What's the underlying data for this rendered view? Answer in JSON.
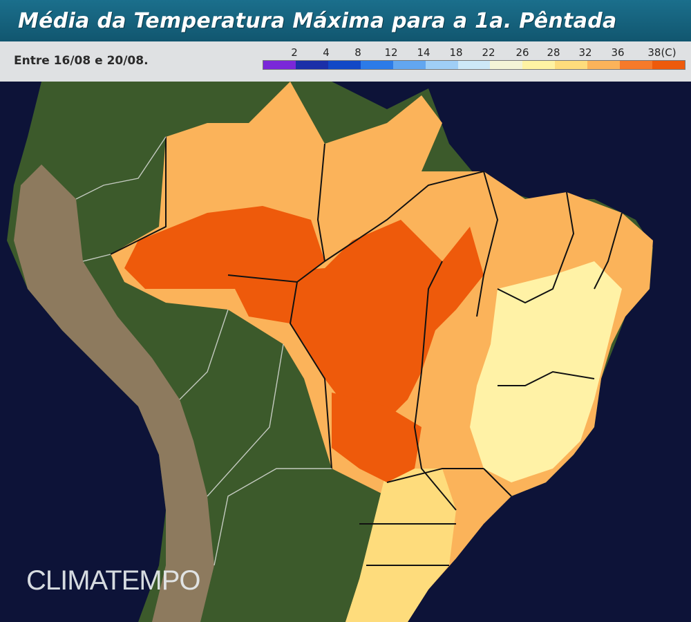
{
  "header": {
    "title": "Média da Temperatura Máxima para a 1a. Pêntada",
    "period": "Entre 16/08 e 20/08."
  },
  "legend": {
    "labels": [
      "2",
      "4",
      "8",
      "12",
      "14",
      "18",
      "22",
      "26",
      "28",
      "32",
      "36",
      "38(C)"
    ],
    "colors": [
      "#7a27d8",
      "#1b2fa8",
      "#1248c6",
      "#2c7be8",
      "#62a6f0",
      "#9fcef6",
      "#cde8f7",
      "#f4f4d6",
      "#fff3a3",
      "#fedc7c",
      "#fbb35a",
      "#f67a2a",
      "#ee5a0b"
    ]
  },
  "map": {
    "colors": {
      "ocean": "#0d1338",
      "land": "#3c5a2b",
      "andes": "#8d7a5e",
      "hot": "#ee5a0b",
      "warm": "#fbb35a",
      "mild": "#fedc7c",
      "cool": "#fff2a6",
      "cold": "#cde8f7"
    }
  },
  "branding": {
    "name": "CLIMATEMPO"
  }
}
